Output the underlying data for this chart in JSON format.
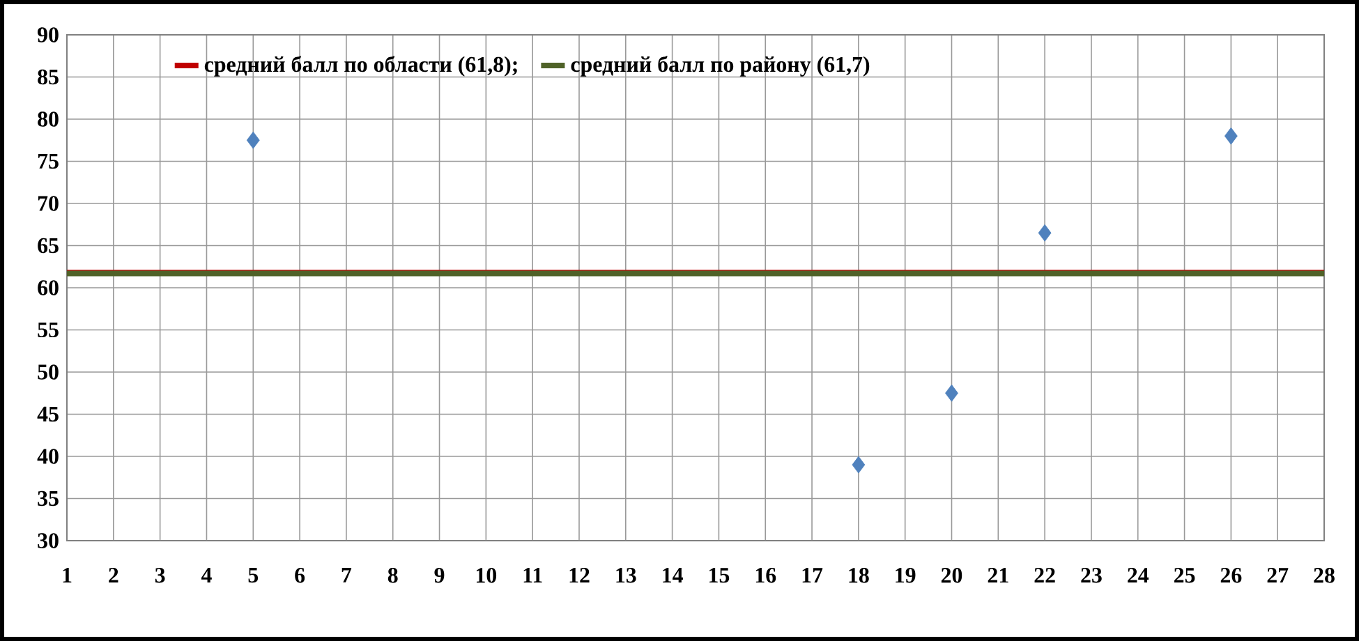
{
  "chart_data": {
    "type": "scatter",
    "x": [
      5,
      18,
      20,
      22,
      26
    ],
    "values": [
      77.5,
      39,
      47.5,
      66.5,
      78
    ],
    "color": "#4f81bd",
    "marker": "diamond",
    "xlim": [
      1,
      28
    ],
    "xticks": [
      1,
      2,
      3,
      4,
      5,
      6,
      7,
      8,
      9,
      10,
      11,
      12,
      13,
      14,
      15,
      16,
      17,
      18,
      19,
      20,
      21,
      22,
      23,
      24,
      25,
      26,
      27,
      28
    ],
    "ylim": [
      30,
      90
    ],
    "yticks": [
      30,
      35,
      40,
      45,
      50,
      55,
      60,
      65,
      70,
      75,
      80,
      85,
      90
    ],
    "grid": true,
    "legend": "top",
    "ref_lines": [
      {
        "axis": "y",
        "value": 61.8,
        "label": "средний балл по области (61,8);",
        "color": "#c00000"
      },
      {
        "axis": "y",
        "value": 61.7,
        "label": "средний балл по району (61,7)",
        "color": "#4f6228"
      }
    ]
  }
}
